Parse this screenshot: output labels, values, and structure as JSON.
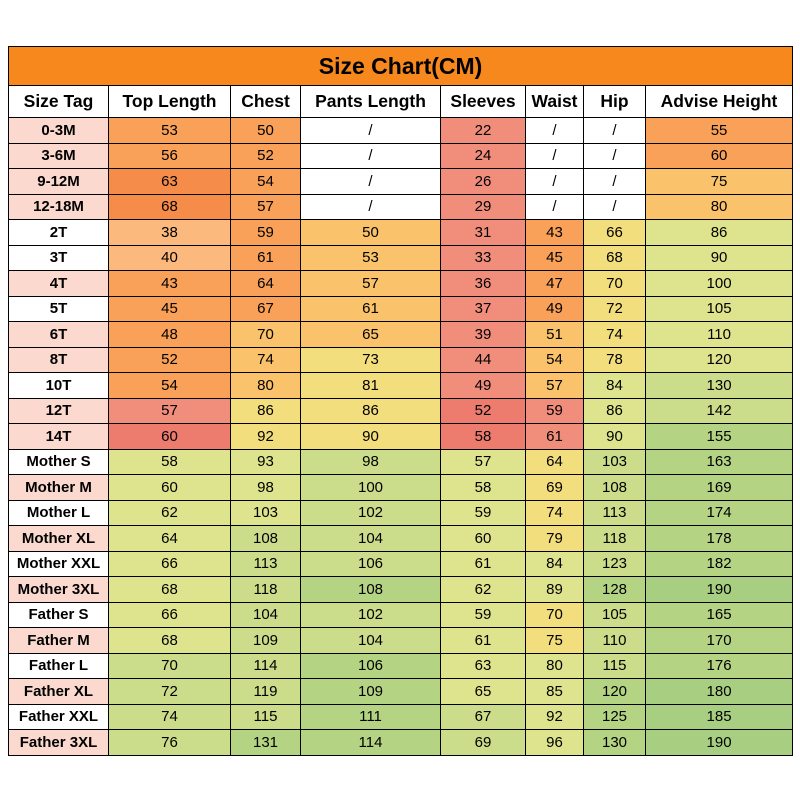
{
  "title": "Size Chart(CM)",
  "colors": {
    "accent": "#F6881D",
    "border": "#000000",
    "background": "#FFFFFF",
    "text": "#000000"
  },
  "palette": {
    "w": "#FFFFFF",
    "p": "#FBD9CE",
    "o1": "#FBB97E",
    "o2": "#F9A159",
    "o3": "#F68C49",
    "r1": "#F18D7B",
    "r2": "#ED7B6E",
    "y1": "#FAC36B",
    "y2": "#F3DE7E",
    "yg": "#DEE48D",
    "g1": "#CBDC8A",
    "g2": "#B4D484",
    "g3": "#A8CF81"
  },
  "table": {
    "columns": [
      "Size Tag",
      "Top Length",
      "Chest",
      "Pants Length",
      "Sleeves",
      "Waist",
      "Hip",
      "Advise Height"
    ],
    "rows": [
      {
        "tag": "0-3M",
        "tagColor": "p",
        "values": [
          "53",
          "50",
          "/",
          "22",
          "/",
          "/",
          "55"
        ],
        "cellColors": [
          "o2",
          "o2",
          "w",
          "r1",
          "w",
          "w",
          "o2"
        ]
      },
      {
        "tag": "3-6M",
        "tagColor": "p",
        "values": [
          "56",
          "52",
          "/",
          "24",
          "/",
          "/",
          "60"
        ],
        "cellColors": [
          "o2",
          "o2",
          "w",
          "r1",
          "w",
          "w",
          "o2"
        ]
      },
      {
        "tag": "9-12M",
        "tagColor": "p",
        "values": [
          "63",
          "54",
          "/",
          "26",
          "/",
          "/",
          "75"
        ],
        "cellColors": [
          "o3",
          "o2",
          "w",
          "r1",
          "w",
          "w",
          "y1"
        ]
      },
      {
        "tag": "12-18M",
        "tagColor": "p",
        "values": [
          "68",
          "57",
          "/",
          "29",
          "/",
          "/",
          "80"
        ],
        "cellColors": [
          "o3",
          "o2",
          "w",
          "r1",
          "w",
          "w",
          "y1"
        ]
      },
      {
        "tag": "2T",
        "tagColor": "w",
        "values": [
          "38",
          "59",
          "50",
          "31",
          "43",
          "66",
          "86"
        ],
        "cellColors": [
          "o1",
          "o2",
          "y1",
          "r1",
          "o2",
          "y2",
          "yg"
        ]
      },
      {
        "tag": "3T",
        "tagColor": "w",
        "values": [
          "40",
          "61",
          "53",
          "33",
          "45",
          "68",
          "90"
        ],
        "cellColors": [
          "o1",
          "o2",
          "y1",
          "r1",
          "o2",
          "y2",
          "yg"
        ]
      },
      {
        "tag": "4T",
        "tagColor": "p",
        "values": [
          "43",
          "64",
          "57",
          "36",
          "47",
          "70",
          "100"
        ],
        "cellColors": [
          "o2",
          "o2",
          "y1",
          "r1",
          "o2",
          "y2",
          "yg"
        ]
      },
      {
        "tag": "5T",
        "tagColor": "w",
        "values": [
          "45",
          "67",
          "61",
          "37",
          "49",
          "72",
          "105"
        ],
        "cellColors": [
          "o2",
          "o2",
          "y1",
          "r1",
          "o2",
          "y2",
          "yg"
        ]
      },
      {
        "tag": "6T",
        "tagColor": "p",
        "values": [
          "48",
          "70",
          "65",
          "39",
          "51",
          "74",
          "110"
        ],
        "cellColors": [
          "o2",
          "y1",
          "y1",
          "r1",
          "y1",
          "y2",
          "yg"
        ]
      },
      {
        "tag": "8T",
        "tagColor": "p",
        "values": [
          "52",
          "74",
          "73",
          "44",
          "54",
          "78",
          "120"
        ],
        "cellColors": [
          "o2",
          "y1",
          "y2",
          "r1",
          "y1",
          "y2",
          "yg"
        ]
      },
      {
        "tag": "10T",
        "tagColor": "w",
        "values": [
          "54",
          "80",
          "81",
          "49",
          "57",
          "84",
          "130"
        ],
        "cellColors": [
          "o2",
          "y1",
          "y2",
          "r1",
          "y1",
          "yg",
          "g1"
        ]
      },
      {
        "tag": "12T",
        "tagColor": "p",
        "values": [
          "57",
          "86",
          "86",
          "52",
          "59",
          "86",
          "142"
        ],
        "cellColors": [
          "r1",
          "y2",
          "y2",
          "r2",
          "r1",
          "yg",
          "g1"
        ]
      },
      {
        "tag": "14T",
        "tagColor": "p",
        "values": [
          "60",
          "92",
          "90",
          "58",
          "61",
          "90",
          "155"
        ],
        "cellColors": [
          "r2",
          "y2",
          "y2",
          "r2",
          "r1",
          "yg",
          "g2"
        ]
      },
      {
        "tag": "Mother S",
        "tagColor": "w",
        "values": [
          "58",
          "93",
          "98",
          "57",
          "64",
          "103",
          "163"
        ],
        "cellColors": [
          "yg",
          "yg",
          "g1",
          "yg",
          "y2",
          "g1",
          "g2"
        ]
      },
      {
        "tag": "Mother M",
        "tagColor": "p",
        "values": [
          "60",
          "98",
          "100",
          "58",
          "69",
          "108",
          "169"
        ],
        "cellColors": [
          "yg",
          "yg",
          "g1",
          "yg",
          "y2",
          "g1",
          "g2"
        ]
      },
      {
        "tag": "Mother L",
        "tagColor": "w",
        "values": [
          "62",
          "103",
          "102",
          "59",
          "74",
          "113",
          "174"
        ],
        "cellColors": [
          "yg",
          "yg",
          "g1",
          "yg",
          "y2",
          "g1",
          "g2"
        ]
      },
      {
        "tag": "Mother XL",
        "tagColor": "p",
        "values": [
          "64",
          "108",
          "104",
          "60",
          "79",
          "118",
          "178"
        ],
        "cellColors": [
          "yg",
          "g1",
          "g1",
          "yg",
          "y2",
          "g1",
          "g2"
        ]
      },
      {
        "tag": "Mother XXL",
        "tagColor": "w",
        "values": [
          "66",
          "113",
          "106",
          "61",
          "84",
          "123",
          "182"
        ],
        "cellColors": [
          "yg",
          "g1",
          "g1",
          "yg",
          "yg",
          "g1",
          "g2"
        ]
      },
      {
        "tag": "Mother 3XL",
        "tagColor": "p",
        "values": [
          "68",
          "118",
          "108",
          "62",
          "89",
          "128",
          "190"
        ],
        "cellColors": [
          "yg",
          "g1",
          "g2",
          "yg",
          "yg",
          "g2",
          "g3"
        ]
      },
      {
        "tag": "Father S",
        "tagColor": "w",
        "values": [
          "66",
          "104",
          "102",
          "59",
          "70",
          "105",
          "165"
        ],
        "cellColors": [
          "yg",
          "g1",
          "g1",
          "yg",
          "y2",
          "g1",
          "g2"
        ]
      },
      {
        "tag": "Father M",
        "tagColor": "p",
        "values": [
          "68",
          "109",
          "104",
          "61",
          "75",
          "110",
          "170"
        ],
        "cellColors": [
          "yg",
          "g1",
          "g1",
          "yg",
          "y2",
          "g1",
          "g2"
        ]
      },
      {
        "tag": "Father L",
        "tagColor": "w",
        "values": [
          "70",
          "114",
          "106",
          "63",
          "80",
          "115",
          "176"
        ],
        "cellColors": [
          "g1",
          "g1",
          "g2",
          "yg",
          "yg",
          "g1",
          "g2"
        ]
      },
      {
        "tag": "Father XL",
        "tagColor": "p",
        "values": [
          "72",
          "119",
          "109",
          "65",
          "85",
          "120",
          "180"
        ],
        "cellColors": [
          "g1",
          "g1",
          "g2",
          "yg",
          "yg",
          "g2",
          "g3"
        ]
      },
      {
        "tag": "Father XXL",
        "tagColor": "w",
        "values": [
          "74",
          "115",
          "111",
          "67",
          "92",
          "125",
          "185"
        ],
        "cellColors": [
          "g1",
          "g1",
          "g2",
          "g1",
          "yg",
          "g2",
          "g3"
        ]
      },
      {
        "tag": "Father 3XL",
        "tagColor": "p",
        "values": [
          "76",
          "131",
          "114",
          "69",
          "96",
          "130",
          "190"
        ],
        "cellColors": [
          "g1",
          "g2",
          "g2",
          "g1",
          "yg",
          "g2",
          "g3"
        ]
      }
    ]
  },
  "chart_data": {
    "type": "table",
    "title": "Size Chart(CM)",
    "columns": [
      "Size Tag",
      "Top Length",
      "Chest",
      "Pants Length",
      "Sleeves",
      "Waist",
      "Hip",
      "Advise Height"
    ],
    "rows": [
      [
        "0-3M",
        53,
        50,
        "/",
        22,
        "/",
        "/",
        55
      ],
      [
        "3-6M",
        56,
        52,
        "/",
        24,
        "/",
        "/",
        60
      ],
      [
        "9-12M",
        63,
        54,
        "/",
        26,
        "/",
        "/",
        75
      ],
      [
        "12-18M",
        68,
        57,
        "/",
        29,
        "/",
        "/",
        80
      ],
      [
        "2T",
        38,
        59,
        50,
        31,
        43,
        66,
        86
      ],
      [
        "3T",
        40,
        61,
        53,
        33,
        45,
        68,
        90
      ],
      [
        "4T",
        43,
        64,
        57,
        36,
        47,
        70,
        100
      ],
      [
        "5T",
        45,
        67,
        61,
        37,
        49,
        72,
        105
      ],
      [
        "6T",
        48,
        70,
        65,
        39,
        51,
        74,
        110
      ],
      [
        "8T",
        52,
        74,
        73,
        44,
        54,
        78,
        120
      ],
      [
        "10T",
        54,
        80,
        81,
        49,
        57,
        84,
        130
      ],
      [
        "12T",
        57,
        86,
        86,
        52,
        59,
        86,
        142
      ],
      [
        "14T",
        60,
        92,
        90,
        58,
        61,
        90,
        155
      ],
      [
        "Mother S",
        58,
        93,
        98,
        57,
        64,
        103,
        163
      ],
      [
        "Mother M",
        60,
        98,
        100,
        58,
        69,
        108,
        169
      ],
      [
        "Mother L",
        62,
        103,
        102,
        59,
        74,
        113,
        174
      ],
      [
        "Mother XL",
        64,
        108,
        104,
        60,
        79,
        118,
        178
      ],
      [
        "Mother XXL",
        66,
        113,
        106,
        61,
        84,
        123,
        182
      ],
      [
        "Mother 3XL",
        68,
        118,
        108,
        62,
        89,
        128,
        190
      ],
      [
        "Father S",
        66,
        104,
        102,
        59,
        70,
        105,
        165
      ],
      [
        "Father M",
        68,
        109,
        104,
        61,
        75,
        110,
        170
      ],
      [
        "Father L",
        70,
        114,
        106,
        63,
        80,
        115,
        176
      ],
      [
        "Father XL",
        72,
        119,
        109,
        65,
        85,
        120,
        180
      ],
      [
        "Father XXL",
        74,
        115,
        111,
        67,
        92,
        125,
        185
      ],
      [
        "Father 3XL",
        76,
        131,
        114,
        69,
        96,
        130,
        190
      ]
    ],
    "notes": "Heat-map style fill: orange/red for small child sizes, yellow-green to green for adult sizes; '/' means not applicable"
  }
}
